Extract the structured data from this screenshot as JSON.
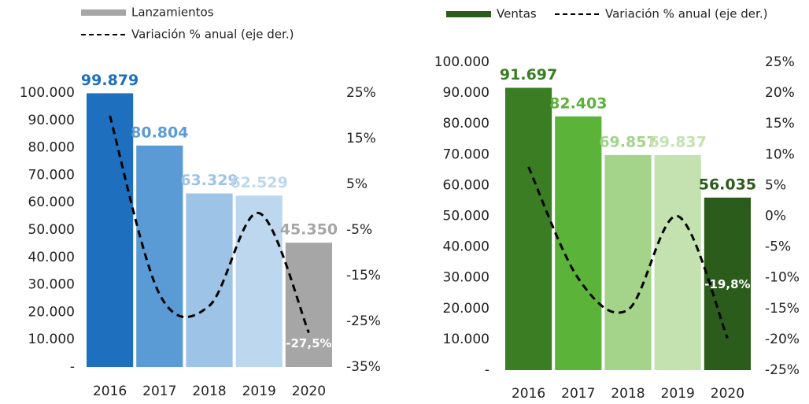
{
  "chart_data": [
    {
      "type": "bar",
      "categories": [
        "2016",
        "2017",
        "2018",
        "2019",
        "2020"
      ],
      "series": [
        {
          "name": "Lanzamientos",
          "color": "#a6a6a6",
          "colors": [
            "#1f6fbf",
            "#5b9bd5",
            "#9dc3e6",
            "#bdd7ee",
            "#a6a6a6"
          ],
          "values": [
            99879,
            80804,
            63329,
            62529,
            45350
          ],
          "value_labels": [
            "99.879",
            "80.804",
            "63.329",
            "62.529",
            "45.350"
          ]
        },
        {
          "name": "Variación % anual (eje der.)",
          "type": "line",
          "axis": "y2",
          "color": "#000000",
          "dashed": true,
          "values": [
            20,
            -19.1,
            -21.6,
            -1.3,
            -27.5
          ],
          "value_labels": [
            null,
            null,
            null,
            null,
            "-27,5%"
          ]
        }
      ],
      "ylim": [
        0,
        100000
      ],
      "yticks": [
        {
          "value": 0,
          "label": "-"
        },
        {
          "value": 10000,
          "label": "10.000"
        },
        {
          "value": 20000,
          "label": "20.000"
        },
        {
          "value": 30000,
          "label": "30.000"
        },
        {
          "value": 40000,
          "label": "40.000"
        },
        {
          "value": 50000,
          "label": "50.000"
        },
        {
          "value": 60000,
          "label": "60.000"
        },
        {
          "value": 70000,
          "label": "70.000"
        },
        {
          "value": 80000,
          "label": "80.000"
        },
        {
          "value": 90000,
          "label": "90.000"
        },
        {
          "value": 100000,
          "label": "100.000"
        }
      ],
      "y2lim": [
        -35,
        25
      ],
      "y2ticks": [
        {
          "value": 25,
          "label": "25%"
        },
        {
          "value": 15,
          "label": "15%"
        },
        {
          "value": 5,
          "label": "5%"
        },
        {
          "value": -5,
          "label": "-5%"
        },
        {
          "value": -15,
          "label": "-15%"
        },
        {
          "value": -25,
          "label": "-25%"
        },
        {
          "value": -35,
          "label": "-35%"
        }
      ],
      "grid": false
    },
    {
      "type": "bar",
      "categories": [
        "2016",
        "2017",
        "2018",
        "2019",
        "2020"
      ],
      "series": [
        {
          "name": "Ventas",
          "color": "#2b5c1b",
          "colors": [
            "#3b7d23",
            "#5bb33a",
            "#a3d48a",
            "#c3e2b0",
            "#2b5c1b"
          ],
          "values": [
            91697,
            82403,
            69857,
            69837,
            56035
          ],
          "value_labels": [
            "91.697",
            "82.403",
            "69.857",
            "69.837",
            "56.035"
          ]
        },
        {
          "name": "Variación % anual (eje der.)",
          "type": "line",
          "axis": "y2",
          "color": "#000000",
          "dashed": true,
          "values": [
            8,
            -10.1,
            -15.2,
            0,
            -19.8
          ],
          "value_labels": [
            null,
            null,
            null,
            null,
            "-19,8%"
          ]
        }
      ],
      "ylim": [
        0,
        100000
      ],
      "yticks": [
        {
          "value": 0,
          "label": "-"
        },
        {
          "value": 10000,
          "label": "10.000"
        },
        {
          "value": 20000,
          "label": "20.000"
        },
        {
          "value": 30000,
          "label": "30.000"
        },
        {
          "value": 40000,
          "label": "40.000"
        },
        {
          "value": 50000,
          "label": "50.000"
        },
        {
          "value": 60000,
          "label": "60.000"
        },
        {
          "value": 70000,
          "label": "70.000"
        },
        {
          "value": 80000,
          "label": "80.000"
        },
        {
          "value": 90000,
          "label": "90.000"
        },
        {
          "value": 100000,
          "label": "100.000"
        }
      ],
      "y2lim": [
        -25,
        25
      ],
      "y2ticks": [
        {
          "value": 25,
          "label": "25%"
        },
        {
          "value": 20,
          "label": "20%"
        },
        {
          "value": 15,
          "label": "15%"
        },
        {
          "value": 10,
          "label": "10%"
        },
        {
          "value": 5,
          "label": "5%"
        },
        {
          "value": 0,
          "label": "0%"
        },
        {
          "value": -5,
          "label": "-5%"
        },
        {
          "value": -10,
          "label": "-10%"
        },
        {
          "value": -15,
          "label": "-15%"
        },
        {
          "value": -20,
          "label": "-20%"
        },
        {
          "value": -25,
          "label": "-25%"
        }
      ],
      "grid": false
    }
  ]
}
